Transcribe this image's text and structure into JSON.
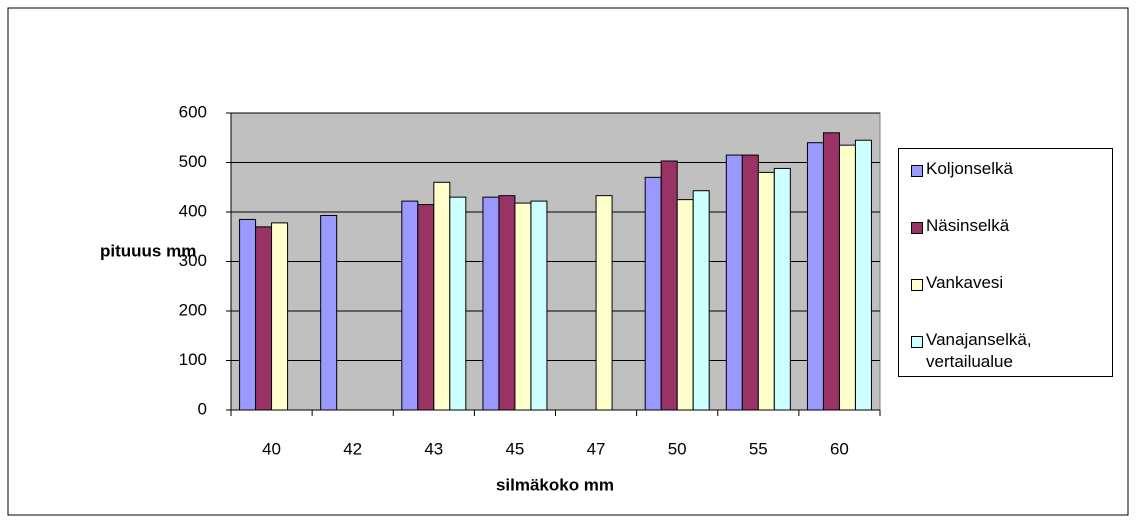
{
  "chart_data": {
    "type": "bar",
    "x_label": "silmäkoko mm",
    "y_label": "pituuus mm",
    "categories": [
      "40",
      "42",
      "43",
      "45",
      "47",
      "50",
      "55",
      "60"
    ],
    "series": [
      {
        "name": "Koljonselkä",
        "color": "#9999ff",
        "values": [
          385,
          393,
          422,
          430,
          null,
          470,
          515,
          540
        ]
      },
      {
        "name": "Näsinselkä",
        "color": "#993366",
        "values": [
          370,
          null,
          415,
          433,
          null,
          503,
          515,
          560
        ]
      },
      {
        "name": "Vankavesi",
        "color": "#ffffcc",
        "values": [
          378,
          null,
          460,
          418,
          433,
          425,
          480,
          535
        ]
      },
      {
        "name": "Vanajanselkä, vertailualue",
        "color": "#ccffff",
        "values": [
          null,
          null,
          430,
          422,
          null,
          443,
          488,
          545
        ]
      }
    ],
    "ylim": [
      0,
      600
    ],
    "yticks": [
      0,
      100,
      200,
      300,
      400,
      500,
      600
    ],
    "grid": true,
    "plot_background": "#c0c0c0",
    "legend": "right"
  }
}
